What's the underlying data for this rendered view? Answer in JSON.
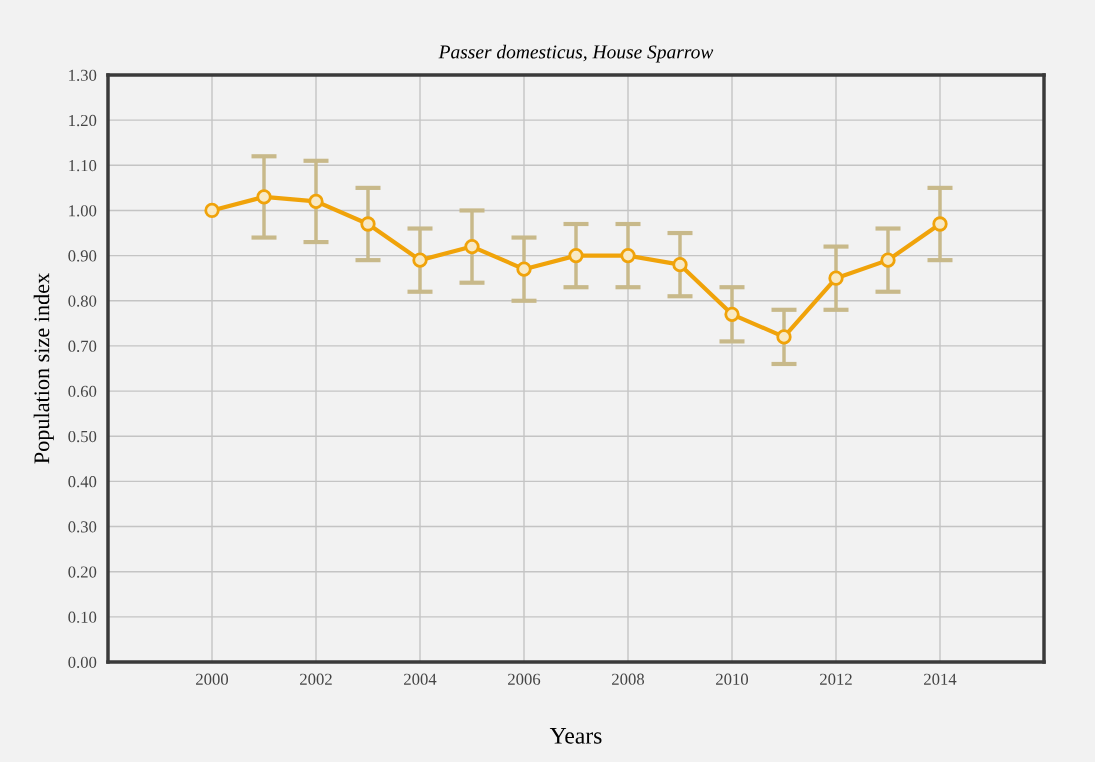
{
  "chart_data": {
    "type": "line",
    "title": "Passer domesticus, House Sparrow",
    "xlabel": "Years",
    "ylabel": "Population size index",
    "x": [
      2000,
      2001,
      2002,
      2003,
      2004,
      2005,
      2006,
      2007,
      2008,
      2009,
      2010,
      2011,
      2012,
      2013,
      2014
    ],
    "series": [
      {
        "color": "#f0a30a",
        "values": [
          1.0,
          1.03,
          1.02,
          0.97,
          0.89,
          0.92,
          0.87,
          0.9,
          0.9,
          0.88,
          0.77,
          0.72,
          0.85,
          0.89,
          0.97
        ],
        "errors": [
          null,
          [
            0.94,
            1.12
          ],
          [
            0.93,
            1.11
          ],
          [
            0.89,
            1.05
          ],
          [
            0.82,
            0.96
          ],
          [
            0.84,
            1.0
          ],
          [
            0.8,
            0.94
          ],
          [
            0.83,
            0.97
          ],
          [
            0.83,
            0.97
          ],
          [
            0.81,
            0.95
          ],
          [
            0.71,
            0.83
          ],
          [
            0.66,
            0.78
          ],
          [
            0.78,
            0.92
          ],
          [
            0.82,
            0.96
          ],
          [
            0.89,
            1.05
          ]
        ]
      }
    ],
    "xlim": [
      1998,
      2016
    ],
    "xticks": [
      2000,
      2002,
      2004,
      2006,
      2008,
      2010,
      2012,
      2014
    ],
    "ylim": [
      0,
      1.3
    ],
    "yticks": [
      {
        "value": 0,
        "label": "0.00"
      },
      {
        "value": 0.1,
        "label": "0.10"
      },
      {
        "value": 0.2,
        "label": "0.20"
      },
      {
        "value": 0.3,
        "label": "0.30"
      },
      {
        "value": 0.4,
        "label": "0.40"
      },
      {
        "value": 0.5,
        "label": "0.50"
      },
      {
        "value": 0.6,
        "label": "0.60"
      },
      {
        "value": 0.7,
        "label": "0.70"
      },
      {
        "value": 0.8,
        "label": "0.80"
      },
      {
        "value": 0.9,
        "label": "0.90"
      },
      {
        "value": 1.0,
        "label": "1.00"
      },
      {
        "value": 1.1,
        "label": "1.10"
      },
      {
        "value": 1.2,
        "label": "1.20"
      },
      {
        "value": 1.3,
        "label": "1.30"
      }
    ],
    "grid": true,
    "marker": "circle",
    "line_style": "solid",
    "legend": false
  }
}
